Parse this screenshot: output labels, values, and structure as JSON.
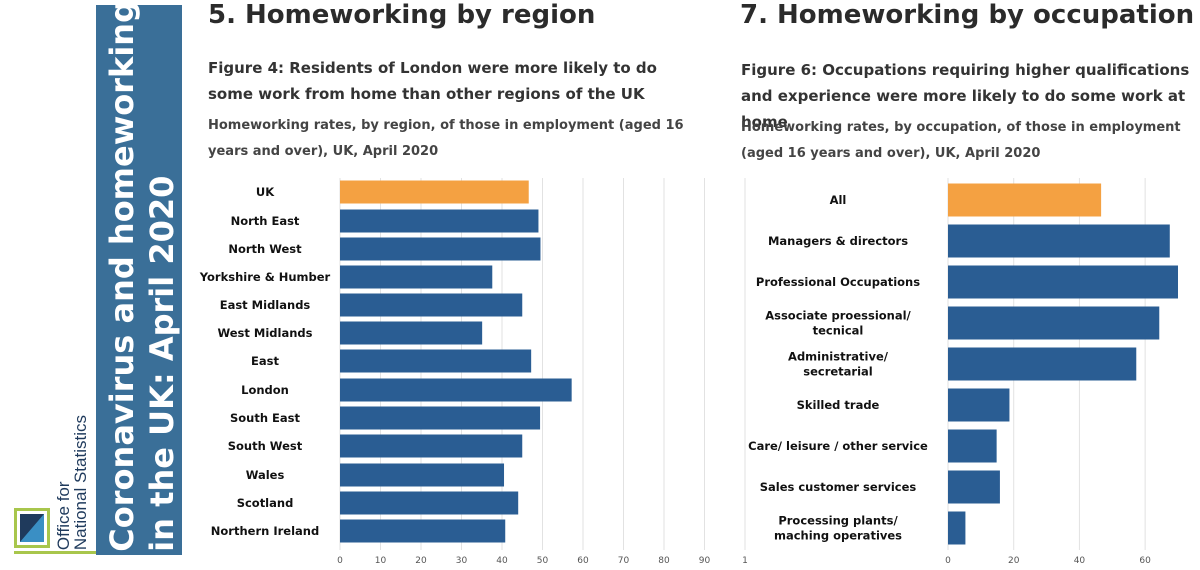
{
  "colors": {
    "highlight": "#f4a142",
    "bar": "#2a5d93",
    "banner": "#3a6f98",
    "grid": "#e2e2e2"
  },
  "banner": {
    "title": "Coronavirus and homeworking\nin the UK: April 2020"
  },
  "logo": {
    "wordmark": "Office for\nNational Statistics"
  },
  "left": {
    "section_title": "5.  Homeworking by region",
    "figure_title": "Figure 4: Residents of London were more likely to do some work from home than other regions of the UK",
    "figure_subtitle": "Homeworking rates, by region, of those in employment (aged 16 years and over), UK, April 2020"
  },
  "right": {
    "section_title": "7.  Homeworking by occupation",
    "figure_title": "Figure 6: Occupations requiring higher qualifications and experience were more likely to do some work at home",
    "figure_subtitle": "Homeworking rates, by occupation, of those in employment (aged 16 years and over), UK, April 2020"
  },
  "chart_data": [
    {
      "type": "bar",
      "orientation": "horizontal",
      "categories": [
        "UK",
        "North East",
        "North West",
        "Yorkshire & Humber",
        "East Midlands",
        "West Midlands",
        "East",
        "London",
        "South East",
        "South West",
        "Wales",
        "Scotland",
        "Northern Ireland"
      ],
      "values": [
        46.6,
        49.0,
        49.5,
        37.6,
        45.0,
        35.1,
        47.2,
        57.2,
        49.4,
        45.0,
        40.5,
        44.0,
        40.8
      ],
      "highlight_category": "UK",
      "xlim": [
        0,
        100
      ],
      "xticks": [
        "0",
        "10",
        "20",
        "30",
        "40",
        "50",
        "60",
        "70",
        "80",
        "90",
        "1"
      ],
      "grid": true
    },
    {
      "type": "bar",
      "orientation": "horizontal",
      "categories": [
        "All",
        "Managers & directors",
        "Professional Occupations",
        "Associate proessional/\ntecnical",
        "Administrative/\nsecretarial",
        "Skilled trade",
        "Care/ leisure / other service",
        "Sales customer services",
        "Processing plants/\nmaching operatives"
      ],
      "values": [
        46.6,
        67.5,
        70.0,
        64.3,
        57.3,
        18.7,
        14.8,
        15.8,
        5.3
      ],
      "highlight_category": "All",
      "xlim": [
        0,
        70
      ],
      "xticks": [
        "0",
        "20",
        "40",
        "60"
      ],
      "grid": true
    }
  ]
}
